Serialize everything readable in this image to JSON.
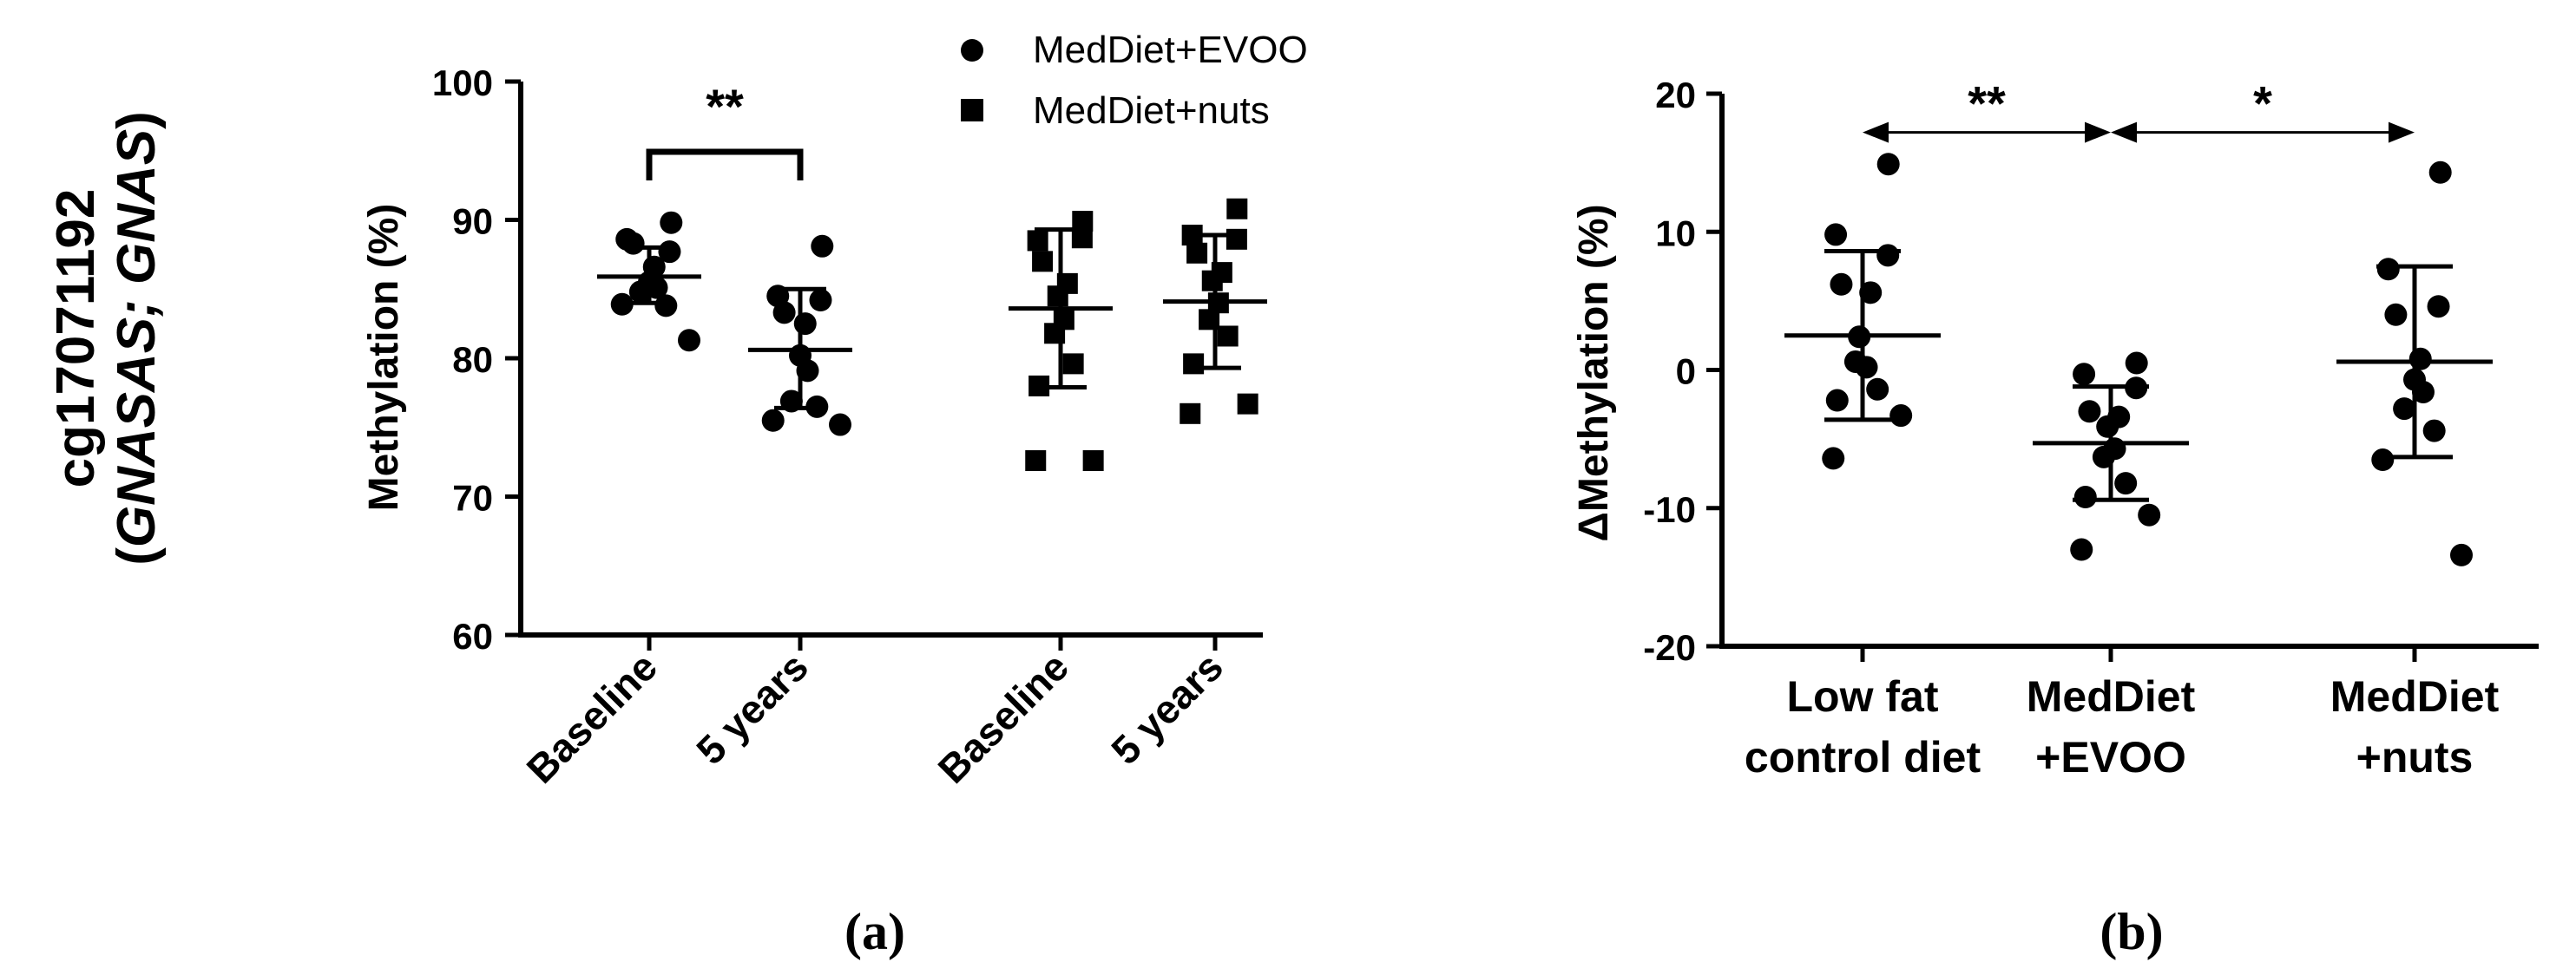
{
  "figure": {
    "row_label_probe": "cg17071192",
    "row_label_gene_open": "(",
    "row_label_gene_italic": "GNASAS; GNAS",
    "row_label_gene_close": ")",
    "panel_a_caption": "(a)",
    "panel_b_caption": "(b)"
  },
  "chart_data": [
    {
      "id": "panel-a",
      "type": "scatter",
      "title": "",
      "xlabel": "",
      "ylabel": "Methylation (%)",
      "ylim": [
        60,
        100
      ],
      "yticks": [
        60,
        70,
        80,
        90,
        100
      ],
      "grid": false,
      "legend_position": "top-right",
      "legend": [
        {
          "label": "MedDiet+EVOO",
          "marker": "circle"
        },
        {
          "label": "MedDiet+nuts",
          "marker": "square"
        }
      ],
      "categories": [
        "Baseline",
        "5 years",
        "Baseline",
        "5 years"
      ],
      "groups": [
        {
          "series": "MedDiet+EVOO",
          "x_label": "Baseline",
          "marker": "circle",
          "mean": 85.9,
          "sd_low": 84.0,
          "sd_high": 88.0,
          "points": [
            89.8,
            88.6,
            87.7,
            88.3,
            86.6,
            85.5,
            85.1,
            84.8,
            83.8,
            83.9,
            81.3
          ]
        },
        {
          "series": "MedDiet+EVOO",
          "x_label": "5 years",
          "marker": "circle",
          "mean": 80.6,
          "sd_low": 76.4,
          "sd_high": 85.0,
          "points": [
            88.1,
            84.5,
            84.2,
            83.3,
            82.5,
            80.2,
            79.1,
            76.9,
            76.5,
            75.5,
            75.2
          ]
        },
        {
          "series": "MedDiet+nuts",
          "x_label": "Baseline",
          "marker": "square",
          "mean": 83.6,
          "sd_low": 77.9,
          "sd_high": 89.3,
          "points": [
            89.9,
            88.5,
            88.7,
            87.0,
            85.4,
            84.5,
            82.8,
            81.8,
            79.6,
            78.0,
            72.6,
            72.6
          ]
        },
        {
          "series": "MedDiet+nuts",
          "x_label": "5 years",
          "marker": "square",
          "mean": 84.1,
          "sd_low": 79.3,
          "sd_high": 88.9,
          "points": [
            90.8,
            88.9,
            88.6,
            87.6,
            86.2,
            85.6,
            84.0,
            82.8,
            81.6,
            79.6,
            76.7,
            76.0
          ]
        }
      ],
      "annotations": [
        {
          "text": "**",
          "from_group": 0,
          "to_group": 1,
          "style": "bracket"
        }
      ]
    },
    {
      "id": "panel-b",
      "type": "scatter",
      "title": "",
      "xlabel": "",
      "ylabel": "ΔMethylation (%)",
      "ylim": [
        -20,
        20
      ],
      "yticks": [
        -20,
        -10,
        0,
        10,
        20
      ],
      "grid": false,
      "categories": [
        {
          "line1": "Low fat",
          "line2": "control diet"
        },
        {
          "line1": "MedDiet",
          "line2": "+EVOO"
        },
        {
          "line1": "MedDiet",
          "line2": "+nuts"
        }
      ],
      "groups": [
        {
          "x_index": 0,
          "marker": "circle",
          "mean": 2.5,
          "sd_low": -3.6,
          "sd_high": 8.6,
          "points": [
            14.9,
            9.8,
            8.3,
            6.2,
            5.6,
            2.4,
            0.2,
            0.6,
            -1.4,
            -2.2,
            -3.3,
            -6.4
          ]
        },
        {
          "x_index": 1,
          "marker": "circle",
          "mean": -5.3,
          "sd_low": -9.4,
          "sd_high": -1.2,
          "points": [
            0.5,
            -0.3,
            -1.3,
            -3.0,
            -3.4,
            -4.1,
            -5.7,
            -6.3,
            -8.2,
            -9.2,
            -10.5,
            -13.0
          ]
        },
        {
          "x_index": 2,
          "marker": "circle",
          "mean": 0.6,
          "sd_low": -6.3,
          "sd_high": 7.5,
          "points": [
            14.3,
            7.3,
            4.6,
            4.0,
            0.8,
            -0.7,
            -1.6,
            -2.8,
            -4.4,
            -6.5,
            -13.4
          ]
        }
      ],
      "annotations": [
        {
          "text": "**",
          "from_group": 0,
          "to_group": 1,
          "style": "double-arrow",
          "y": 17.2
        },
        {
          "text": "*",
          "from_group": 1,
          "to_group": 2,
          "style": "double-arrow",
          "y": 17.2
        }
      ]
    }
  ]
}
